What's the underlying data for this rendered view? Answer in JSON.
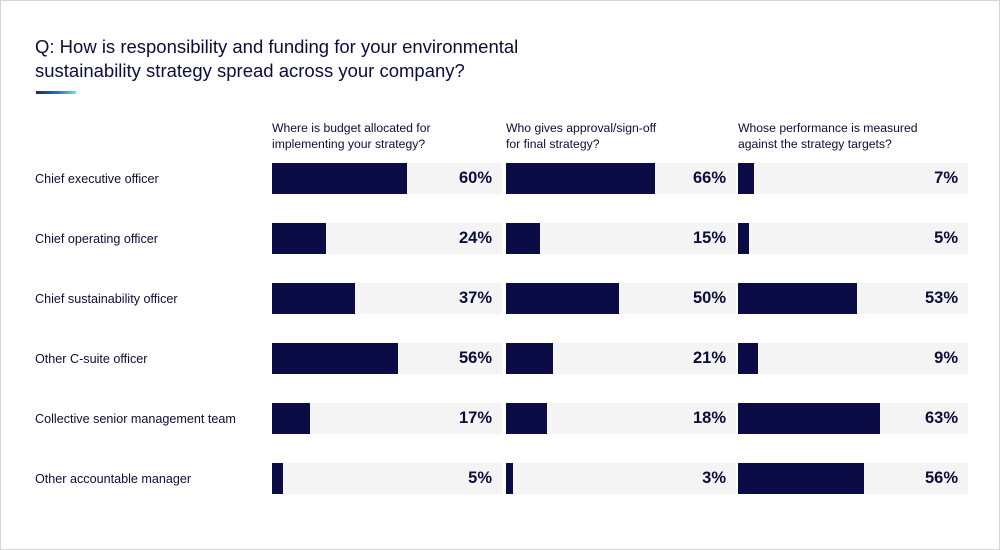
{
  "question": {
    "line1": "Q: How is responsibility and funding for your environmental",
    "line2": "sustainability strategy spread across your company?"
  },
  "colors": {
    "bar": "#0b0c45",
    "track": "#f4f4f4",
    "text": "#0b0d3a"
  },
  "chart_data": {
    "type": "bar",
    "orientation": "horizontal",
    "title": "Q: How is responsibility and funding for your environmental sustainability strategy spread across your company?",
    "categories": [
      "Chief executive officer",
      "Chief operating officer",
      "Chief sustainability officer",
      "Other C-suite officer",
      "Collective senior management team",
      "Other accountable manager"
    ],
    "series": [
      {
        "name": "Where is budget allocated for implementing your strategy?",
        "header_lines": [
          "Where is budget allocated for",
          "implementing your strategy?"
        ],
        "values": [
          60,
          24,
          37,
          56,
          17,
          5
        ]
      },
      {
        "name": "Who gives approval/sign-off for final strategy?",
        "header_lines": [
          "Who gives approval/sign-off",
          "for final strategy?"
        ],
        "values": [
          66,
          15,
          50,
          21,
          18,
          3
        ]
      },
      {
        "name": "Whose performance is measured against the strategy targets?",
        "header_lines": [
          "Whose performance is measured",
          "against the strategy targets?"
        ],
        "values": [
          7,
          5,
          53,
          9,
          63,
          56
        ]
      }
    ],
    "unit": "%",
    "xlim": [
      0,
      100
    ]
  }
}
